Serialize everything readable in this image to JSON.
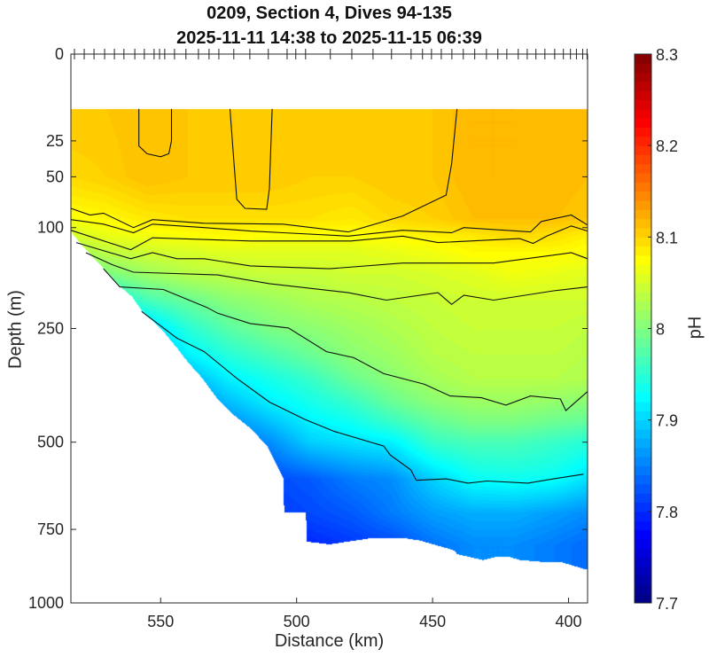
{
  "chart_data": {
    "type": "heatmap",
    "title": "0209, Section 4, Dives 94-135",
    "subtitle": "2025-11-11 14:38 to 2025-11-15 06:39",
    "xlabel": "Distance (km)",
    "ylabel": "Depth (m)",
    "colorbar_label": "pH",
    "xlim": [
      583,
      393
    ],
    "ylim": [
      0,
      1000
    ],
    "y_scale": "sqrt",
    "x_ticks": [
      550,
      500,
      450,
      400
    ],
    "x_tick_labels": [
      "550",
      "500",
      "450",
      "400"
    ],
    "y_ticks": [
      0,
      25,
      50,
      100,
      250,
      500,
      750,
      1000
    ],
    "y_tick_labels": [
      "0",
      "25",
      "50",
      "100",
      "250",
      "500",
      "750",
      "1000"
    ],
    "clim": [
      7.7,
      8.3
    ],
    "colormap": "jet",
    "colorbar_ticks": [
      8.3,
      8.2,
      8.1,
      8.0,
      7.9,
      7.8,
      7.7
    ],
    "colorbar_tick_labels": [
      "8.3",
      "8.2",
      "8.1",
      "8",
      "7.9",
      "7.8",
      "7.7"
    ],
    "dive_positions_km": [
      581.7,
      578.1,
      574.5,
      570.6,
      567.0,
      563.5,
      559.5,
      556.0,
      552.4,
      550.4,
      548.5,
      544.9,
      540.7,
      536.1,
      532.2,
      528.6,
      523.1,
      517.2,
      510.4,
      503.5,
      500.3,
      496.7,
      487.6,
      479.7,
      471.9,
      465.1,
      457.9,
      453.7,
      450.4,
      446.8,
      442.9,
      438.7,
      434.5,
      430.2,
      426.0,
      422.7,
      418.5,
      415.2,
      412.0,
      408.7,
      405.1,
      401.9,
      399.3,
      397.1,
      394.8,
      393.2
    ],
    "top_data_depth": 10,
    "bottom_boundary": [
      [
        583,
        105
      ],
      [
        571.4,
        151
      ],
      [
        564.7,
        180
      ],
      [
        560.4,
        196
      ],
      [
        556.7,
        220
      ],
      [
        553,
        236
      ],
      [
        548.7,
        257
      ],
      [
        543.8,
        288
      ],
      [
        539.5,
        318
      ],
      [
        534.6,
        349
      ],
      [
        529.1,
        395
      ],
      [
        523,
        433
      ],
      [
        516.9,
        465
      ],
      [
        510.8,
        510
      ],
      [
        504.7,
        599
      ],
      [
        504.6,
        697
      ],
      [
        496.5,
        697
      ],
      [
        496.4,
        789
      ],
      [
        487.9,
        798
      ],
      [
        472.6,
        778
      ],
      [
        460.2,
        778
      ],
      [
        454.4,
        786
      ],
      [
        442,
        818
      ],
      [
        441,
        830
      ],
      [
        431.5,
        850
      ],
      [
        426.7,
        839
      ],
      [
        422,
        839
      ],
      [
        417.9,
        850
      ],
      [
        409.7,
        856
      ],
      [
        403.2,
        856
      ],
      [
        398.6,
        868
      ],
      [
        394.4,
        880
      ],
      [
        393,
        880
      ]
    ],
    "grid_distance": [
      583,
      570,
      555,
      540,
      525,
      510,
      495,
      480,
      465,
      450,
      435,
      420,
      405,
      393
    ],
    "grid_depth": [
      10,
      50,
      90,
      110,
      130,
      160,
      200,
      250,
      300,
      350,
      400,
      450,
      500,
      600,
      700,
      800,
      880
    ],
    "ph": [
      [
        8.11,
        8.11,
        8.115,
        8.11,
        8.11,
        8.11,
        8.105,
        8.11,
        8.11,
        8.11,
        8.12,
        8.12,
        8.115,
        8.115
      ],
      [
        8.1,
        8.105,
        8.115,
        8.11,
        8.11,
        8.11,
        8.105,
        8.105,
        8.11,
        8.11,
        8.12,
        8.12,
        8.12,
        8.115
      ],
      [
        8.075,
        8.08,
        8.09,
        8.095,
        8.095,
        8.095,
        8.095,
        8.09,
        8.1,
        8.105,
        8.115,
        8.115,
        8.115,
        8.11
      ],
      [
        8.05,
        8.065,
        8.07,
        8.075,
        8.08,
        8.075,
        8.075,
        8.075,
        8.08,
        8.085,
        8.09,
        8.1,
        8.095,
        8.085
      ],
      [
        8.02,
        8.04,
        8.05,
        8.055,
        8.06,
        8.06,
        8.06,
        8.06,
        8.065,
        8.07,
        8.08,
        8.08,
        8.08,
        8.075
      ],
      [
        7.98,
        8.0,
        8.02,
        8.035,
        8.04,
        8.045,
        8.045,
        8.05,
        8.05,
        8.055,
        8.06,
        8.07,
        8.065,
        8.06
      ],
      [
        7.92,
        7.93,
        7.97,
        7.99,
        8.01,
        8.02,
        8.03,
        8.035,
        8.04,
        8.045,
        8.05,
        8.05,
        8.05,
        8.05
      ],
      [
        7.88,
        7.88,
        7.9,
        7.95,
        7.98,
        8.0,
        8.01,
        8.02,
        8.03,
        8.04,
        8.045,
        8.045,
        8.045,
        8.04
      ],
      [
        7.85,
        7.85,
        7.87,
        7.92,
        7.95,
        7.97,
        7.99,
        8.01,
        8.02,
        8.035,
        8.04,
        8.04,
        8.04,
        8.035
      ],
      [
        7.83,
        7.83,
        7.85,
        7.88,
        7.92,
        7.94,
        7.96,
        7.99,
        8.01,
        8.025,
        8.035,
        8.035,
        8.035,
        8.03
      ],
      [
        7.82,
        7.82,
        7.83,
        7.85,
        7.89,
        7.92,
        7.94,
        7.96,
        7.99,
        8.01,
        8.02,
        8.02,
        8.015,
        8.01
      ],
      [
        7.81,
        7.81,
        7.82,
        7.83,
        7.86,
        7.89,
        7.92,
        7.935,
        7.96,
        7.985,
        8.0,
        8.0,
        7.99,
        7.985
      ],
      [
        7.8,
        7.8,
        7.81,
        7.82,
        7.84,
        7.86,
        7.9,
        7.91,
        7.92,
        7.96,
        7.97,
        7.97,
        7.96,
        7.95
      ],
      [
        7.79,
        7.79,
        7.8,
        7.8,
        7.81,
        7.82,
        7.83,
        7.85,
        7.86,
        7.9,
        7.93,
        7.935,
        7.93,
        7.91
      ],
      [
        7.79,
        7.79,
        7.795,
        7.8,
        7.8,
        7.81,
        7.82,
        7.83,
        7.85,
        7.87,
        7.88,
        7.88,
        7.87,
        7.86
      ],
      [
        7.79,
        7.79,
        7.79,
        7.79,
        7.795,
        7.8,
        7.8,
        7.81,
        7.82,
        7.845,
        7.86,
        7.86,
        7.85,
        7.84
      ],
      [
        7.79,
        7.79,
        7.79,
        7.79,
        7.795,
        7.8,
        7.8,
        7.81,
        7.82,
        7.845,
        7.86,
        7.86,
        7.85,
        7.84
      ]
    ],
    "contours": [
      [
        [
          558,
          10
        ],
        [
          558,
          28
        ],
        [
          555,
          33
        ],
        [
          550,
          35
        ],
        [
          547,
          33
        ],
        [
          546,
          25
        ],
        [
          546,
          10
        ]
      ],
      [
        [
          524.5,
          10
        ],
        [
          523,
          40
        ],
        [
          522,
          70
        ],
        [
          519,
          79
        ],
        [
          511,
          80
        ],
        [
          510,
          60
        ],
        [
          509.5,
          30
        ],
        [
          509,
          10
        ]
      ],
      [
        [
          583,
          79
        ],
        [
          576,
          86
        ],
        [
          571,
          84
        ],
        [
          560,
          100
        ],
        [
          553,
          91
        ],
        [
          534,
          95
        ],
        [
          505,
          96
        ],
        [
          481,
          105
        ],
        [
          461,
          87
        ],
        [
          445,
          66
        ],
        [
          443,
          40
        ],
        [
          441,
          10
        ]
      ],
      [
        [
          583,
          91
        ],
        [
          571,
          96
        ],
        [
          560,
          106
        ],
        [
          553,
          96
        ],
        [
          534,
          100
        ],
        [
          517,
          104
        ],
        [
          505,
          106
        ],
        [
          481,
          110
        ],
        [
          461,
          103
        ],
        [
          443,
          106
        ],
        [
          438.5,
          100
        ],
        [
          414,
          105
        ],
        [
          410,
          93
        ],
        [
          399,
          86
        ],
        [
          393,
          97
        ]
      ],
      [
        [
          583,
          103
        ],
        [
          561,
          127
        ],
        [
          553,
          112
        ],
        [
          517,
          116
        ],
        [
          480,
          116
        ],
        [
          461,
          110
        ],
        [
          448,
          118
        ],
        [
          418,
          113
        ],
        [
          413,
          119
        ],
        [
          408,
          110
        ],
        [
          399,
          98
        ],
        [
          393,
          104
        ]
      ],
      [
        [
          581,
          118
        ],
        [
          561,
          139
        ],
        [
          553,
          131
        ],
        [
          544,
          139
        ],
        [
          534,
          139
        ],
        [
          517,
          149
        ],
        [
          488,
          153
        ],
        [
          461,
          145
        ],
        [
          427.5,
          145
        ],
        [
          399,
          131
        ],
        [
          393,
          139
        ]
      ],
      [
        [
          577.5,
          131
        ],
        [
          568,
          147
        ],
        [
          560,
          158
        ],
        [
          529,
          162
        ],
        [
          510,
          175
        ],
        [
          481,
          189
        ],
        [
          467,
          201
        ],
        [
          448,
          189
        ],
        [
          443,
          208
        ],
        [
          438.5,
          193
        ],
        [
          427.5,
          201
        ],
        [
          405.5,
          186
        ],
        [
          393,
          180
        ]
      ],
      [
        [
          571,
          153
        ],
        [
          565,
          180
        ],
        [
          549,
          184
        ],
        [
          533,
          213
        ],
        [
          529,
          223
        ],
        [
          517,
          241
        ],
        [
          503,
          249
        ],
        [
          489,
          294
        ],
        [
          479,
          306
        ],
        [
          468,
          339
        ],
        [
          453,
          362
        ],
        [
          443.5,
          388
        ],
        [
          432,
          392
        ],
        [
          423,
          409
        ],
        [
          414,
          388
        ],
        [
          403,
          395
        ],
        [
          401,
          422
        ],
        [
          393,
          378
        ]
      ],
      [
        [
          557,
          220
        ],
        [
          544,
          268
        ],
        [
          534,
          294
        ],
        [
          522,
          349
        ],
        [
          510,
          402
        ],
        [
          497,
          443
        ],
        [
          486,
          473
        ],
        [
          468,
          510
        ],
        [
          465.5,
          534
        ],
        [
          458,
          574
        ],
        [
          456,
          603
        ],
        [
          445,
          599
        ],
        [
          437,
          611
        ],
        [
          430,
          605
        ],
        [
          415,
          611
        ],
        [
          405.5,
          599
        ],
        [
          394.5,
          586
        ]
      ]
    ]
  }
}
